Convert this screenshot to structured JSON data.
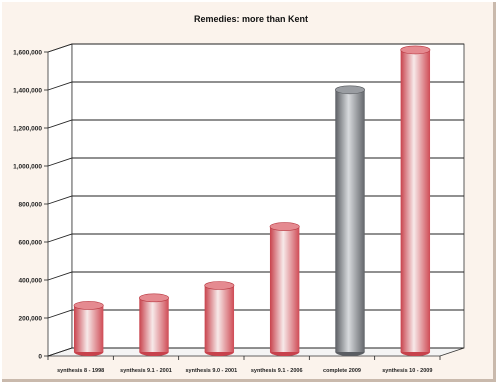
{
  "chart_data": {
    "type": "bar",
    "title": "Remedies: more than Kent",
    "categories": [
      "synthesis 8 - 1998",
      "synthesis 9.1 - 2001",
      "synthesis 9.0 - 2001",
      "synthesis 9.1 - 2006",
      "complete 2009",
      "synthesis 10 - 2009"
    ],
    "values": [
      245000,
      285000,
      350000,
      660000,
      1380000,
      1590000
    ],
    "bar_colors": [
      "#e0737b",
      "#e0737b",
      "#e0737b",
      "#e0737b",
      "#8e9196",
      "#e0737b"
    ],
    "y_ticks": [
      "0",
      "200,000",
      "400,000",
      "600,000",
      "800,000",
      "1,000,000",
      "1,200,000",
      "1,400,000",
      "1,600,000"
    ],
    "ylim": [
      0,
      1600000
    ],
    "xlabel": "",
    "ylabel": "",
    "grid": true,
    "legend": "none"
  }
}
